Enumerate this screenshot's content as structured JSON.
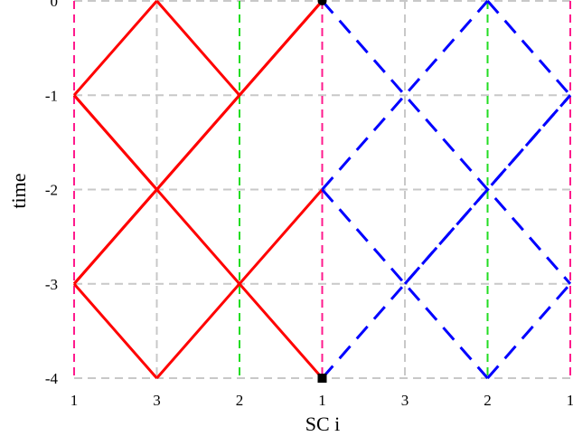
{
  "chart_data": {
    "type": "line",
    "xlabel": "SC i",
    "ylabel": "time",
    "x_tick_labels": [
      "1",
      "3",
      "2",
      "1",
      "3",
      "2",
      "1"
    ],
    "y_tick_labels": [
      "0",
      "-1",
      "-2",
      "-3",
      "-4"
    ],
    "ylim": [
      -4,
      0
    ],
    "grid": true,
    "colors": {
      "solid_series": "#ff0000",
      "dashed_series": "#0000ff",
      "grid": "#c8c8c8",
      "boundary_lines": "#ff1a8c",
      "middle_lines": "#22dd22",
      "markers": "#000000"
    },
    "series": [
      {
        "style": "solid",
        "color": "#ff0000",
        "segments": [
          [
            [
              1,
              0
            ],
            [
              2,
              -1
            ]
          ],
          [
            [
              1,
              -2
            ],
            [
              3,
              0
            ]
          ],
          [
            [
              0,
              -1
            ],
            [
              3,
              -4
            ]
          ],
          [
            [
              0,
              -3
            ],
            [
              3,
              0
            ]
          ],
          [
            [
              1,
              -4
            ],
            [
              3,
              -2
            ]
          ],
          [
            [
              0,
              -1
            ],
            [
              1,
              0
            ]
          ],
          [
            [
              0,
              -1
            ],
            [
              1,
              -2
            ]
          ],
          [
            [
              0,
              -3
            ],
            [
              1,
              -4
            ]
          ],
          [
            [
              0,
              -3
            ],
            [
              1,
              -2
            ]
          ]
        ]
      },
      {
        "style": "dashed",
        "color": "#0000ff",
        "segments": [
          [
            [
              3,
              0
            ],
            [
              6,
              -3
            ]
          ],
          [
            [
              3,
              -2
            ],
            [
              5,
              0
            ]
          ],
          [
            [
              3,
              -4
            ],
            [
              6,
              -1
            ]
          ],
          [
            [
              3,
              -2
            ],
            [
              5,
              -4
            ]
          ],
          [
            [
              4,
              -3
            ],
            [
              6,
              -1
            ]
          ],
          [
            [
              5,
              0
            ],
            [
              6,
              -1
            ]
          ],
          [
            [
              5,
              -4
            ],
            [
              6,
              -3
            ]
          ]
        ]
      }
    ],
    "boundary_lines_x": [
      0,
      3,
      6
    ],
    "middle_lines_x": [
      2,
      5
    ],
    "markers": [
      {
        "shape": "circle",
        "x": 3,
        "y": 0
      },
      {
        "shape": "square",
        "x": 3,
        "y": -4
      }
    ]
  }
}
